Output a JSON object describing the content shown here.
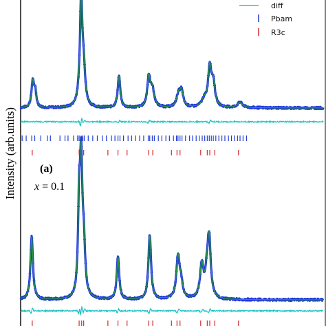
{
  "chart_data": {
    "type": "line",
    "title": "",
    "ylabel": "Intensity (arb.units)",
    "xlabel": "",
    "panel_label": "(a)",
    "variable_label_italic": "x",
    "variable_label_rest": " = 0.1",
    "grid": false,
    "legend_position": "top-right",
    "legend": [
      {
        "label": "diff",
        "kind": "line",
        "color": "#22c4c4"
      },
      {
        "label": "Pbam",
        "kind": "tick",
        "color": "#1f3bd6"
      },
      {
        "label": "R3c",
        "kind": "tick",
        "color": "#d62728"
      }
    ],
    "x_range": [
      20,
      80
    ],
    "colors": {
      "observed": "#1f3bd6",
      "calculated": "#2ca02c",
      "difference": "#22c4c4",
      "pbam_ticks": "#1f3bd6",
      "r3c_ticks": "#d62728"
    },
    "patterns": [
      {
        "name": "upper",
        "baseline": 157,
        "peaks": [
          {
            "x": 22.4,
            "h": 38,
            "w": 0.3
          },
          {
            "x": 22.9,
            "h": 22,
            "w": 0.25
          },
          {
            "x": 31.6,
            "h": 9,
            "w": 0.6
          },
          {
            "x": 32.0,
            "h": 150,
            "w": 0.28
          },
          {
            "x": 32.5,
            "h": 50,
            "w": 0.35
          },
          {
            "x": 39.5,
            "h": 46,
            "w": 0.3
          },
          {
            "x": 45.4,
            "h": 42,
            "w": 0.35
          },
          {
            "x": 46.1,
            "h": 26,
            "w": 0.45
          },
          {
            "x": 51.3,
            "h": 18,
            "w": 0.45
          },
          {
            "x": 51.9,
            "h": 22,
            "w": 0.4
          },
          {
            "x": 56.4,
            "h": 10,
            "w": 0.6
          },
          {
            "x": 57.5,
            "h": 57,
            "w": 0.4
          },
          {
            "x": 58.2,
            "h": 32,
            "w": 0.4
          },
          {
            "x": 63.5,
            "h": 8,
            "w": 0.6
          }
        ],
        "diff_baseline": 177,
        "pbam_tick_y": 201,
        "r3c_tick_y": 222
      },
      {
        "name": "lower",
        "baseline": 436,
        "peaks": [
          {
            "x": 22.2,
            "h": 92,
            "w": 0.3
          },
          {
            "x": 31.6,
            "h": 120,
            "w": 0.26
          },
          {
            "x": 32.0,
            "h": 176,
            "w": 0.28
          },
          {
            "x": 32.5,
            "h": 70,
            "w": 0.35
          },
          {
            "x": 39.3,
            "h": 62,
            "w": 0.3
          },
          {
            "x": 45.6,
            "h": 93,
            "w": 0.32
          },
          {
            "x": 51.2,
            "h": 60,
            "w": 0.4
          },
          {
            "x": 51.8,
            "h": 20,
            "w": 0.4
          },
          {
            "x": 55.9,
            "h": 48,
            "w": 0.4
          },
          {
            "x": 57.4,
            "h": 75,
            "w": 0.35
          },
          {
            "x": 57.0,
            "h": 38,
            "w": 0.45
          }
        ],
        "diff_baseline": 452,
        "r3c_tick_y": 470
      }
    ],
    "pbam_reflections": [
      20.3,
      21.1,
      22.2,
      22.8,
      24.0,
      25.3,
      25.9,
      27.8,
      28.8,
      29.4,
      30.5,
      31.3,
      31.6,
      32.0,
      32.3,
      32.6,
      33.4,
      34.3,
      35.2,
      36.2,
      37.0,
      38.0,
      38.7,
      39.3,
      39.7,
      40.4,
      41.3,
      42.0,
      42.8,
      43.6,
      44.4,
      45.3,
      45.6,
      46.1,
      46.5,
      47.3,
      48.0,
      48.8,
      49.5,
      50.3,
      50.9,
      51.2,
      51.6,
      52.0,
      52.7,
      53.5,
      54.1,
      54.8,
      55.4,
      56.0,
      56.5,
      57.0,
      57.4,
      57.8,
      58.2,
      58.7,
      59.3,
      59.9,
      60.5,
      61.2,
      61.8,
      62.4,
      63.0,
      63.5,
      64.1,
      64.8
    ],
    "r3c_reflections": [
      22.3,
      31.6,
      32.1,
      32.5,
      37.3,
      39.3,
      41.1,
      45.4,
      46.2,
      49.9,
      51.0,
      51.6,
      55.7,
      57.0,
      57.5,
      58.5,
      63.2
    ]
  }
}
